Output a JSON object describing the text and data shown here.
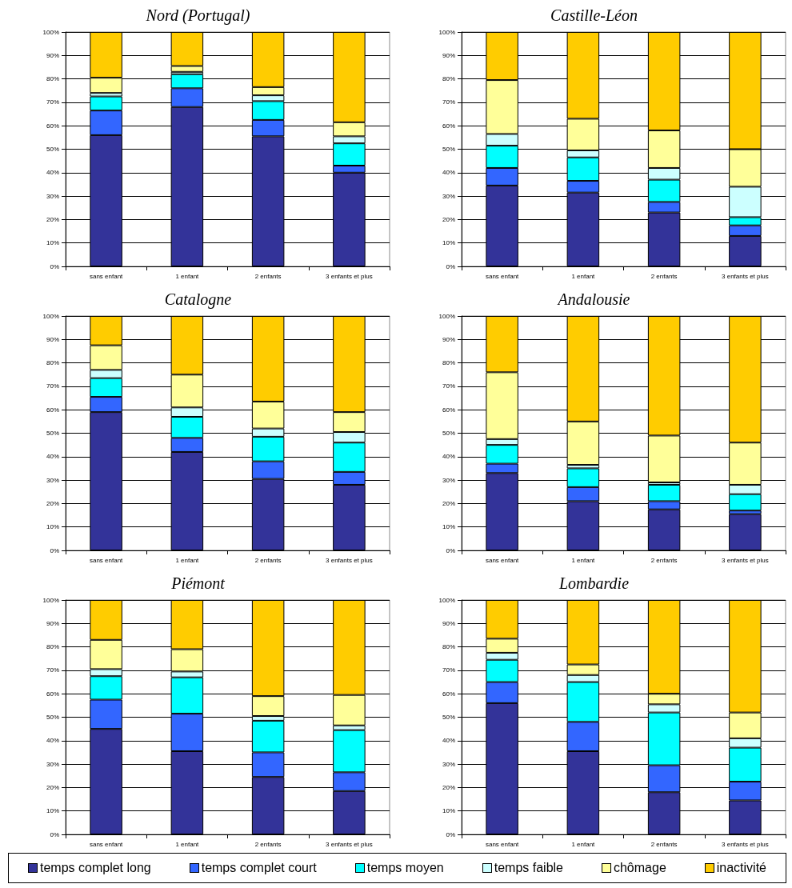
{
  "chart_data": [
    {
      "type": "bar",
      "stacked": true,
      "title": "Nord (Portugal)",
      "categories": [
        "sans enfant",
        "1 enfant",
        "2 enfants",
        "3 enfants et plus"
      ],
      "ylim": [
        0,
        100
      ],
      "yticks": [
        {
          "value": 0,
          "label": "0%"
        },
        {
          "value": 10,
          "label": "10%"
        },
        {
          "value": 20,
          "label": "20%"
        },
        {
          "value": 30,
          "label": "30%"
        },
        {
          "value": 40,
          "label": "40%"
        },
        {
          "value": 50,
          "label": "50%"
        },
        {
          "value": 60,
          "label": "60%"
        },
        {
          "value": 70,
          "label": "70%"
        },
        {
          "value": 80,
          "label": "80%"
        },
        {
          "value": 90,
          "label": "90%"
        },
        {
          "value": 100,
          "label": "100%"
        }
      ],
      "grid": "y",
      "series": [
        {
          "color": "#333399",
          "values": [
            56,
            68,
            55.5,
            40
          ]
        },
        {
          "color": "#3366ff",
          "values": [
            10.5,
            8,
            7,
            3
          ]
        },
        {
          "color": "#00ffff",
          "values": [
            6,
            6,
            8,
            9.5
          ]
        },
        {
          "color": "#ccffff",
          "values": [
            1.5,
            1,
            2.5,
            3
          ]
        },
        {
          "color": "#ffff99",
          "values": [
            6.5,
            2.5,
            3.5,
            6
          ]
        },
        {
          "color": "#ffcc00",
          "values": [
            19.5,
            14.5,
            23.5,
            38.5
          ]
        }
      ]
    },
    {
      "type": "bar",
      "stacked": true,
      "title": "Castille-Léon",
      "categories": [
        "sans enfant",
        "1 enfant",
        "2 enfants",
        "3 enfants et plus"
      ],
      "ylim": [
        0,
        100
      ],
      "yticks": [
        {
          "value": 0,
          "label": "0%"
        },
        {
          "value": 10,
          "label": "10%"
        },
        {
          "value": 20,
          "label": "20%"
        },
        {
          "value": 30,
          "label": "30%"
        },
        {
          "value": 40,
          "label": "40%"
        },
        {
          "value": 50,
          "label": "50%"
        },
        {
          "value": 60,
          "label": "60%"
        },
        {
          "value": 70,
          "label": "70%"
        },
        {
          "value": 80,
          "label": "80%"
        },
        {
          "value": 90,
          "label": "90%"
        },
        {
          "value": 100,
          "label": "100%"
        }
      ],
      "grid": "y",
      "series": [
        {
          "color": "#333399",
          "values": [
            34.5,
            31.5,
            23,
            13
          ]
        },
        {
          "color": "#3366ff",
          "values": [
            7.5,
            5,
            4.5,
            4.5
          ]
        },
        {
          "color": "#00ffff",
          "values": [
            9.5,
            10,
            9.5,
            3.5
          ]
        },
        {
          "color": "#ccffff",
          "values": [
            5,
            3,
            5,
            13
          ]
        },
        {
          "color": "#ffff99",
          "values": [
            23,
            13.5,
            16,
            16
          ]
        },
        {
          "color": "#ffcc00",
          "values": [
            20.5,
            37,
            42,
            50
          ]
        }
      ]
    },
    {
      "type": "bar",
      "stacked": true,
      "title": "Catalogne",
      "categories": [
        "sans enfant",
        "1 enfant",
        "2 enfants",
        "3 enfants et plus"
      ],
      "ylim": [
        0,
        100
      ],
      "yticks": [
        {
          "value": 0,
          "label": "0%"
        },
        {
          "value": 10,
          "label": "10%"
        },
        {
          "value": 20,
          "label": "20%"
        },
        {
          "value": 30,
          "label": "30%"
        },
        {
          "value": 40,
          "label": "40%"
        },
        {
          "value": 50,
          "label": "50%"
        },
        {
          "value": 60,
          "label": "60%"
        },
        {
          "value": 70,
          "label": "70%"
        },
        {
          "value": 80,
          "label": "80%"
        },
        {
          "value": 90,
          "label": "90%"
        },
        {
          "value": 100,
          "label": "100%"
        }
      ],
      "grid": "y",
      "series": [
        {
          "color": "#333399",
          "values": [
            59,
            42,
            30.5,
            28
          ]
        },
        {
          "color": "#3366ff",
          "values": [
            6.5,
            6,
            7.5,
            5.5
          ]
        },
        {
          "color": "#00ffff",
          "values": [
            8,
            9,
            10.5,
            12.5
          ]
        },
        {
          "color": "#ccffff",
          "values": [
            3.5,
            4,
            3.5,
            4.5
          ]
        },
        {
          "color": "#ffff99",
          "values": [
            10.5,
            14,
            11.5,
            8.5
          ]
        },
        {
          "color": "#ffcc00",
          "values": [
            12.5,
            25,
            36.5,
            41
          ]
        }
      ]
    },
    {
      "type": "bar",
      "stacked": true,
      "title": "Andalousie",
      "categories": [
        "sans enfant",
        "1 enfant",
        "2 enfants",
        "3 enfants et plus"
      ],
      "ylim": [
        0,
        100
      ],
      "yticks": [
        {
          "value": 0,
          "label": "0%"
        },
        {
          "value": 10,
          "label": "10%"
        },
        {
          "value": 20,
          "label": "20%"
        },
        {
          "value": 30,
          "label": "30%"
        },
        {
          "value": 40,
          "label": "40%"
        },
        {
          "value": 50,
          "label": "50%"
        },
        {
          "value": 60,
          "label": "60%"
        },
        {
          "value": 70,
          "label": "70%"
        },
        {
          "value": 80,
          "label": "80%"
        },
        {
          "value": 90,
          "label": "90%"
        },
        {
          "value": 100,
          "label": "100%"
        }
      ],
      "grid": "y",
      "series": [
        {
          "color": "#333399",
          "values": [
            33,
            21,
            17.5,
            15.5
          ]
        },
        {
          "color": "#3366ff",
          "values": [
            4,
            6,
            3.5,
            1.5
          ]
        },
        {
          "color": "#00ffff",
          "values": [
            8,
            8,
            7,
            7
          ]
        },
        {
          "color": "#ccffff",
          "values": [
            2.5,
            1.5,
            1,
            4
          ]
        },
        {
          "color": "#ffff99",
          "values": [
            28.5,
            18.5,
            20,
            18
          ]
        },
        {
          "color": "#ffcc00",
          "values": [
            24,
            45,
            51,
            54
          ]
        }
      ]
    },
    {
      "type": "bar",
      "stacked": true,
      "title": "Piémont",
      "categories": [
        "sans enfant",
        "1 enfant",
        "2 enfants",
        "3 enfants et plus"
      ],
      "ylim": [
        0,
        100
      ],
      "yticks": [
        {
          "value": 0,
          "label": "0%"
        },
        {
          "value": 10,
          "label": "10%"
        },
        {
          "value": 20,
          "label": "20%"
        },
        {
          "value": 30,
          "label": "30%"
        },
        {
          "value": 40,
          "label": "40%"
        },
        {
          "value": 50,
          "label": "50%"
        },
        {
          "value": 60,
          "label": "60%"
        },
        {
          "value": 70,
          "label": "70%"
        },
        {
          "value": 80,
          "label": "80%"
        },
        {
          "value": 90,
          "label": "90%"
        },
        {
          "value": 100,
          "label": "100%"
        }
      ],
      "grid": "y",
      "series": [
        {
          "color": "#333399",
          "values": [
            45,
            35.5,
            24.5,
            18.5
          ]
        },
        {
          "color": "#3366ff",
          "values": [
            12.5,
            16,
            10.5,
            8
          ]
        },
        {
          "color": "#00ffff",
          "values": [
            10,
            15.5,
            13.5,
            18
          ]
        },
        {
          "color": "#ccffff",
          "values": [
            3,
            2.5,
            2,
            2
          ]
        },
        {
          "color": "#ffff99",
          "values": [
            12.5,
            9.5,
            8.5,
            13
          ]
        },
        {
          "color": "#ffcc00",
          "values": [
            17,
            21,
            41,
            40.5
          ]
        }
      ]
    },
    {
      "type": "bar",
      "stacked": true,
      "title": "Lombardie",
      "categories": [
        "sans enfant",
        "1 enfant",
        "2 enfants",
        "3 enfants et plus"
      ],
      "ylim": [
        0,
        100
      ],
      "yticks": [
        {
          "value": 0,
          "label": "0%"
        },
        {
          "value": 10,
          "label": "10%"
        },
        {
          "value": 20,
          "label": "20%"
        },
        {
          "value": 30,
          "label": "30%"
        },
        {
          "value": 40,
          "label": "40%"
        },
        {
          "value": 50,
          "label": "50%"
        },
        {
          "value": 60,
          "label": "60%"
        },
        {
          "value": 70,
          "label": "70%"
        },
        {
          "value": 80,
          "label": "80%"
        },
        {
          "value": 90,
          "label": "90%"
        },
        {
          "value": 100,
          "label": "100%"
        }
      ],
      "grid": "y",
      "legend": "bottom",
      "series": [
        {
          "name": "temps complet long",
          "color": "#333399",
          "values": [
            56,
            35.5,
            18,
            14.5
          ]
        },
        {
          "name": "temps complet court",
          "color": "#3366ff",
          "values": [
            9,
            12.5,
            11.5,
            8
          ]
        },
        {
          "name": "temps moyen",
          "color": "#00ffff",
          "values": [
            9.5,
            17,
            22.5,
            14.5
          ]
        },
        {
          "name": "temps faible",
          "color": "#ccffff",
          "values": [
            3,
            3,
            3.5,
            4
          ]
        },
        {
          "name": "chômage",
          "color": "#ffff99",
          "values": [
            6,
            4.5,
            4.5,
            11
          ]
        },
        {
          "name": "inactivité",
          "color": "#ffcc00",
          "values": [
            16.5,
            27.5,
            40,
            48
          ]
        }
      ]
    }
  ]
}
